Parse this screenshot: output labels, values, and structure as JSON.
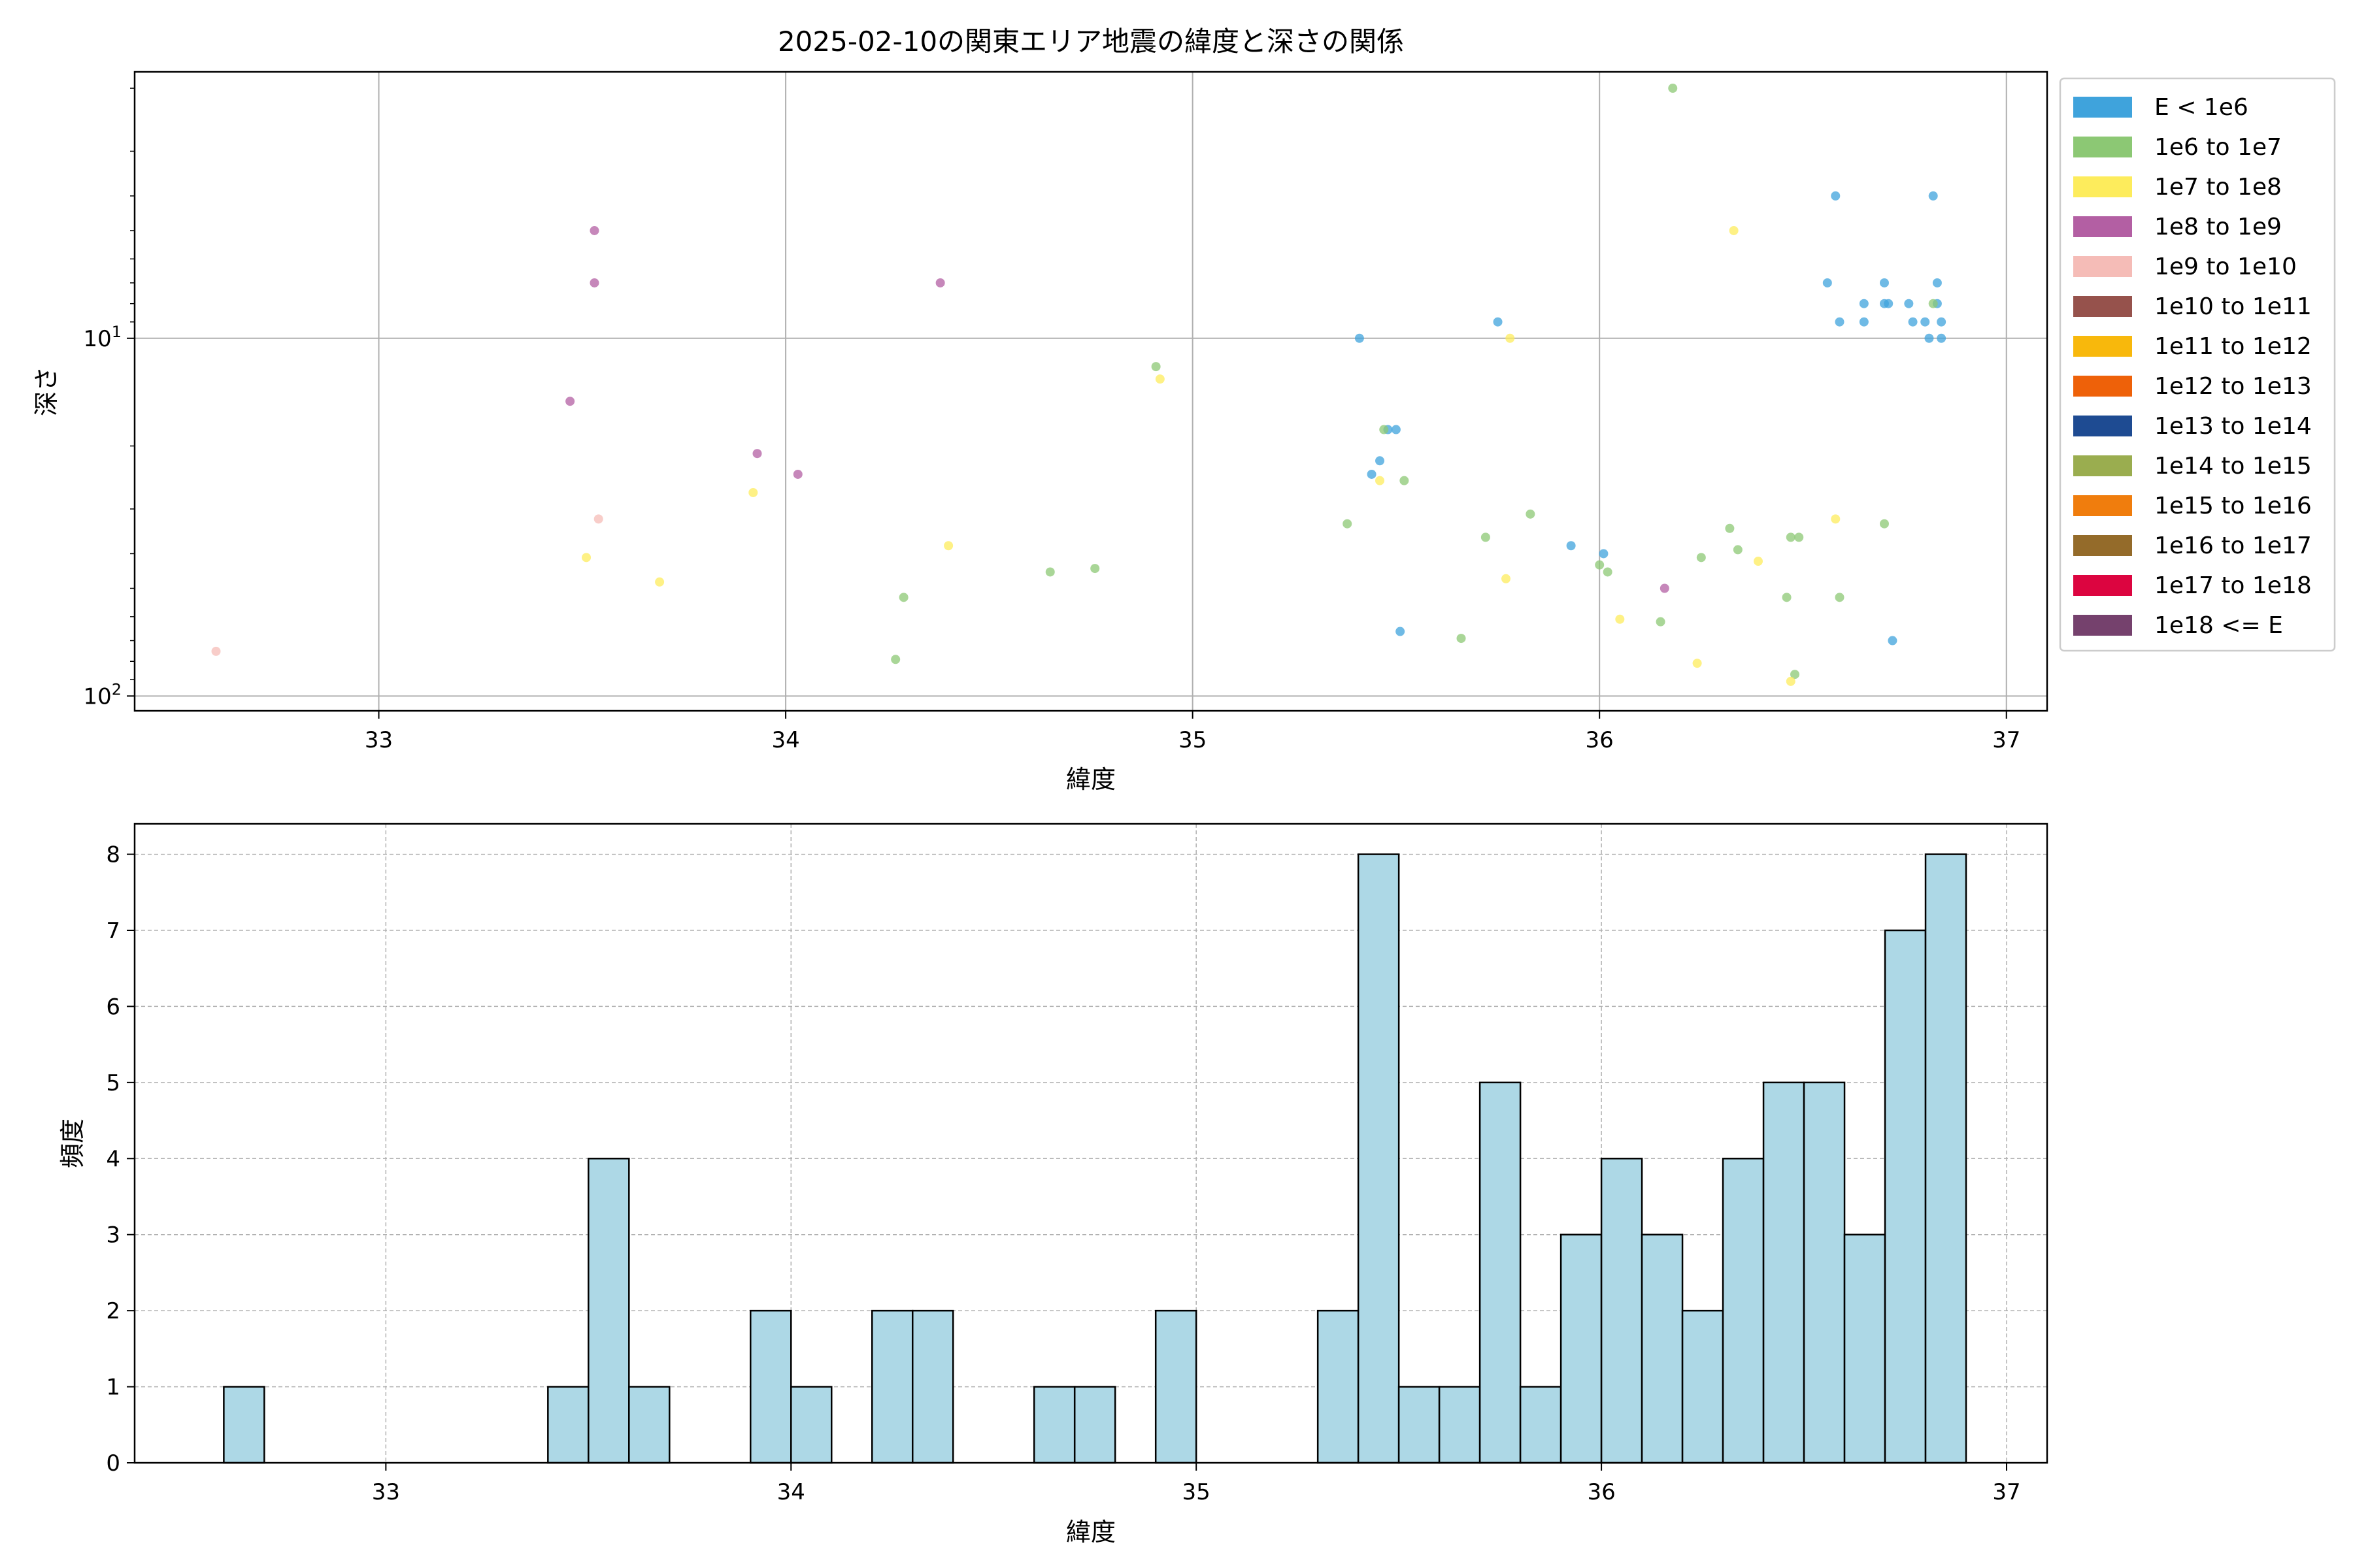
{
  "chart_data": [
    {
      "type": "scatter",
      "title": "2025-02-10の関東エリア地震の緯度と深さの関係",
      "xlabel": "緯度",
      "ylabel": "深さ",
      "xlim": [
        32.4,
        37.1
      ],
      "ylim": [
        110,
        1.8
      ],
      "y_scale": "log",
      "y_inverted": true,
      "xticks": [
        "33",
        "34",
        "35",
        "36",
        "37"
      ],
      "yticks": [
        {
          "value": 10,
          "label": "10",
          "sup": "1"
        },
        {
          "value": 100,
          "label": "10",
          "sup": "2"
        }
      ],
      "grid": true,
      "legend_position": "right, outside plot",
      "legend": [
        {
          "label": "E < 1e6",
          "color": "#3fa3dc"
        },
        {
          "label": "1e6 to 1e7",
          "color": "#8cc874"
        },
        {
          "label": "1e7 to 1e8",
          "color": "#fdec5c"
        },
        {
          "label": "1e8 to 1e9",
          "color": "#b35fa3"
        },
        {
          "label": "1e9 to 1e10",
          "color": "#f5bcb7"
        },
        {
          "label": "1e10 to 1e11",
          "color": "#96524c"
        },
        {
          "label": "1e11 to 1e12",
          "color": "#f8b80c"
        },
        {
          "label": "1e12 to 1e13",
          "color": "#ee6109"
        },
        {
          "label": "1e13 to 1e14",
          "color": "#1e4b92"
        },
        {
          "label": "1e14 to 1e15",
          "color": "#9aad4f"
        },
        {
          "label": "1e15 to 1e16",
          "color": "#f07d0d"
        },
        {
          "label": "1e16 to 1e17",
          "color": "#946b2a"
        },
        {
          "label": "1e17 to 1e18",
          "color": "#dc0540"
        },
        {
          "label": "1e18 <= E",
          "color": "#75416d"
        }
      ],
      "series": [
        {
          "color": "#3fa3dc",
          "points": [
            [
              36.58,
              4
            ],
            [
              36.56,
              7
            ],
            [
              36.59,
              9
            ],
            [
              36.65,
              9
            ],
            [
              36.65,
              8
            ],
            [
              36.7,
              7
            ],
            [
              36.7,
              8
            ],
            [
              36.71,
              8
            ],
            [
              36.76,
              8
            ],
            [
              36.77,
              9
            ],
            [
              36.8,
              9
            ],
            [
              36.82,
              4
            ],
            [
              36.83,
              7
            ],
            [
              36.83,
              8
            ],
            [
              36.81,
              10
            ],
            [
              36.84,
              9
            ],
            [
              36.84,
              10
            ],
            [
              35.75,
              9
            ],
            [
              35.41,
              10
            ],
            [
              35.44,
              24
            ],
            [
              35.46,
              22
            ],
            [
              35.48,
              18
            ],
            [
              35.5,
              18
            ],
            [
              35.51,
              66
            ],
            [
              35.93,
              38
            ],
            [
              36.01,
              40
            ],
            [
              36.72,
              70
            ]
          ]
        },
        {
          "color": "#8cc874",
          "points": [
            [
              36.18,
              2
            ],
            [
              36.82,
              8
            ],
            [
              34.91,
              12
            ],
            [
              35.38,
              33
            ],
            [
              35.47,
              18
            ],
            [
              35.52,
              25
            ],
            [
              35.66,
              69
            ],
            [
              35.72,
              36
            ],
            [
              35.83,
              31
            ],
            [
              36.0,
              43
            ],
            [
              36.02,
              45
            ],
            [
              36.15,
              62
            ],
            [
              36.25,
              41
            ],
            [
              36.32,
              34
            ],
            [
              36.34,
              39
            ],
            [
              36.46,
              53
            ],
            [
              36.47,
              36
            ],
            [
              36.49,
              36
            ],
            [
              36.48,
              87
            ],
            [
              36.59,
              53
            ],
            [
              36.7,
              33
            ],
            [
              34.27,
              79
            ],
            [
              34.29,
              53
            ],
            [
              34.65,
              45
            ],
            [
              34.76,
              44
            ]
          ]
        },
        {
          "color": "#fdec5c",
          "points": [
            [
              36.33,
              5
            ],
            [
              35.78,
              10
            ],
            [
              34.92,
              13
            ],
            [
              33.51,
              41
            ],
            [
              33.69,
              48
            ],
            [
              33.92,
              27
            ],
            [
              34.4,
              38
            ],
            [
              35.46,
              25
            ],
            [
              35.77,
              47
            ],
            [
              36.05,
              61
            ],
            [
              36.24,
              81
            ],
            [
              36.39,
              42
            ],
            [
              36.47,
              91
            ],
            [
              36.58,
              32
            ]
          ]
        },
        {
          "color": "#b35fa3",
          "points": [
            [
              33.53,
              5
            ],
            [
              33.53,
              7
            ],
            [
              34.38,
              7
            ],
            [
              33.47,
              15
            ],
            [
              33.93,
              21
            ],
            [
              34.03,
              24
            ],
            [
              36.16,
              50
            ]
          ]
        },
        {
          "color": "#f5bcb7",
          "points": [
            [
              33.54,
              32
            ],
            [
              32.6,
              75
            ]
          ]
        }
      ]
    },
    {
      "type": "histogram",
      "xlabel": "緯度",
      "ylabel": "頻度",
      "xlim": [
        32.38,
        37.1
      ],
      "ylim": [
        0,
        8.4
      ],
      "xticks": [
        "33",
        "34",
        "35",
        "36",
        "37"
      ],
      "yticks": [
        "0",
        "1",
        "2",
        "3",
        "4",
        "5",
        "6",
        "7",
        "8"
      ],
      "grid": "dashed",
      "bar_color": "#add8e6",
      "edge_color": "#000000",
      "bin_start": 32.6,
      "bin_width": 0.1,
      "counts": [
        1,
        0,
        0,
        0,
        0,
        0,
        0,
        0,
        1,
        4,
        1,
        0,
        0,
        2,
        1,
        0,
        2,
        2,
        0,
        0,
        1,
        1,
        0,
        2,
        0,
        0,
        0,
        2,
        8,
        1,
        1,
        5,
        1,
        3,
        4,
        3,
        2,
        4,
        5,
        5,
        3,
        7,
        8
      ]
    }
  ]
}
